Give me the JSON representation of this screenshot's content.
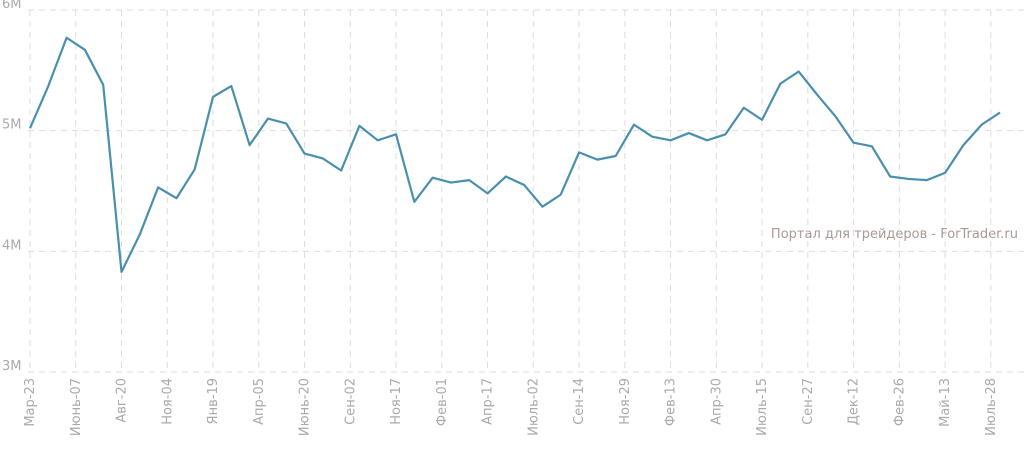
{
  "chart_data": {
    "type": "line",
    "watermark": "Портал для трейдеров - ForTrader.ru",
    "x": [
      0,
      1,
      2,
      3,
      4,
      5,
      6,
      7,
      8,
      9,
      10,
      11,
      12,
      13,
      14,
      15,
      16,
      17,
      18,
      19,
      20,
      21,
      22,
      23,
      24,
      25,
      26,
      27,
      28,
      29,
      30,
      31,
      32,
      33,
      34,
      35,
      36,
      37,
      38,
      39,
      40,
      41,
      42,
      43,
      44,
      45,
      46,
      47,
      48,
      49,
      50,
      51,
      52,
      53
    ],
    "series": [
      {
        "color": "#4a8fae",
        "values": [
          5.02,
          5.37,
          5.77,
          5.67,
          5.38,
          3.83,
          4.14,
          4.53,
          4.44,
          4.68,
          5.28,
          5.37,
          4.88,
          5.1,
          5.06,
          4.81,
          4.77,
          4.67,
          5.04,
          4.92,
          4.97,
          4.41,
          4.61,
          4.57,
          4.59,
          4.48,
          4.62,
          4.55,
          4.37,
          4.47,
          4.82,
          4.76,
          4.79,
          5.05,
          4.95,
          4.92,
          4.98,
          4.92,
          4.97,
          5.19,
          5.09,
          5.39,
          5.49,
          5.3,
          5.12,
          4.9,
          4.87,
          4.62,
          4.6,
          4.59,
          4.65,
          4.88,
          5.05,
          5.15
        ]
      }
    ],
    "xlim": [
      0,
      53
    ],
    "xticks": [
      {
        "value": 0,
        "label": "Мар-23"
      },
      {
        "value": 2.5,
        "label": "Июнь-07"
      },
      {
        "value": 5,
        "label": "Авг-20"
      },
      {
        "value": 7.5,
        "label": "Ноя-04"
      },
      {
        "value": 10,
        "label": "Янв-19"
      },
      {
        "value": 12.5,
        "label": "Апр-05"
      },
      {
        "value": 15,
        "label": "Июнь-20"
      },
      {
        "value": 17.5,
        "label": "Сен-02"
      },
      {
        "value": 20,
        "label": "Ноя-17"
      },
      {
        "value": 22.5,
        "label": "Фев-01"
      },
      {
        "value": 25,
        "label": "Апр-17"
      },
      {
        "value": 27.5,
        "label": "Июль-02"
      },
      {
        "value": 30,
        "label": "Сен-14"
      },
      {
        "value": 32.5,
        "label": "Ноя-29"
      },
      {
        "value": 35,
        "label": "Фев-13"
      },
      {
        "value": 37.5,
        "label": "Апр-30"
      },
      {
        "value": 40,
        "label": "Июль-15"
      },
      {
        "value": 42.5,
        "label": "Сен-27"
      },
      {
        "value": 45,
        "label": "Дек-12"
      },
      {
        "value": 47.5,
        "label": "Фев-26"
      },
      {
        "value": 50,
        "label": "Май-13"
      },
      {
        "value": 52.5,
        "label": "Июль-28"
      }
    ],
    "ylim": [
      3,
      6
    ],
    "yticks": [
      {
        "value": 3,
        "label": "3M"
      },
      {
        "value": 4,
        "label": "4M"
      },
      {
        "value": 5,
        "label": "5M"
      },
      {
        "value": 6,
        "label": "6M"
      }
    ],
    "grid": true
  }
}
